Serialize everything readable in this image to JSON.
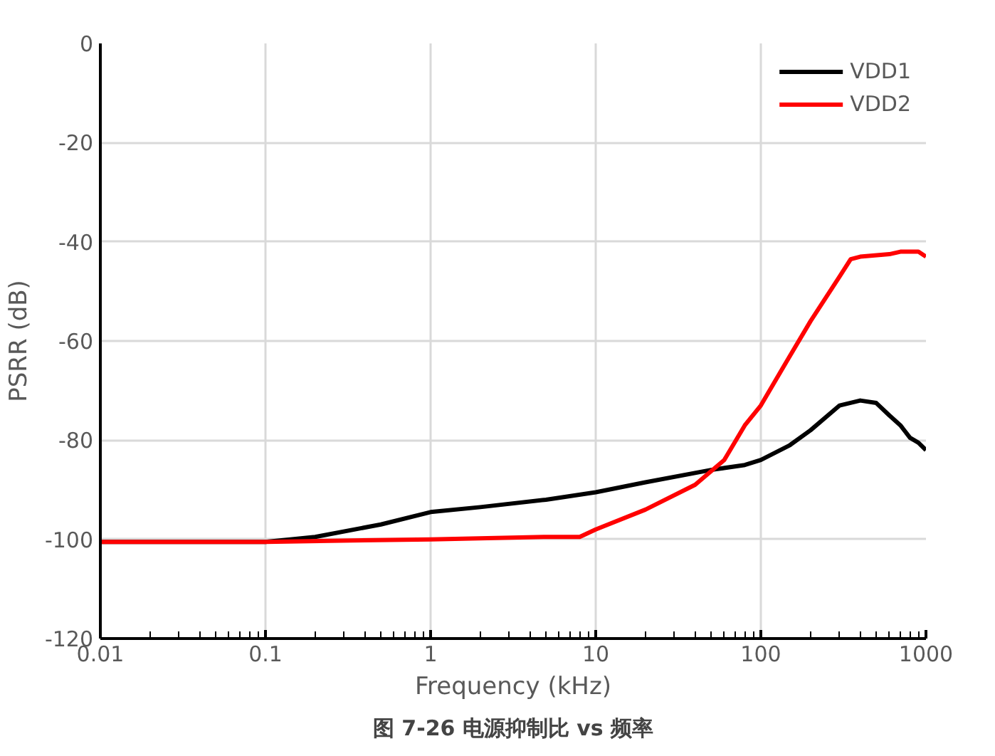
{
  "chart_data": {
    "type": "line",
    "title": "图 7-26 电源抑制比 vs 频率",
    "xlabel": "Frequency (kHz)",
    "ylabel": "PSRR (dB)",
    "log": "x",
    "grid": true,
    "legend": "top right",
    "line_style": "solid",
    "marker": "none",
    "xlim": [
      0.01,
      1000
    ],
    "xticks": [
      0.01,
      0.1,
      1,
      10,
      100,
      1000
    ],
    "ylim": [
      -120,
      0
    ],
    "yticks": [
      -120,
      -100,
      -80,
      -60,
      -40,
      -20,
      0
    ],
    "series": [
      {
        "name": "VDD1",
        "color": "#000000",
        "x": [
          0.01,
          0.1,
          0.2,
          0.5,
          1,
          2,
          5,
          10,
          20,
          50,
          80,
          100,
          150,
          200,
          300,
          400,
          500,
          600,
          700,
          800,
          900,
          1000
        ],
        "values": [
          -100.5,
          -100.5,
          -99.5,
          -97,
          -94.5,
          -93.5,
          -92,
          -90.5,
          -88.5,
          -86,
          -85,
          -84,
          -81,
          -78,
          -73,
          -72,
          -72.5,
          -75,
          -77,
          -79.5,
          -80.5,
          -82
        ]
      },
      {
        "name": "VDD2",
        "color": "#ff0000",
        "x": [
          0.01,
          0.1,
          1,
          5,
          8,
          10,
          20,
          40,
          60,
          80,
          100,
          150,
          200,
          300,
          350,
          400,
          600,
          700,
          900,
          1000
        ],
        "values": [
          -100.5,
          -100.5,
          -100,
          -99.5,
          -99.5,
          -98,
          -94,
          -89,
          -84,
          -77,
          -73,
          -63,
          -56,
          -47,
          -43.5,
          -43,
          -42.5,
          -42,
          -42,
          -43
        ]
      }
    ]
  }
}
